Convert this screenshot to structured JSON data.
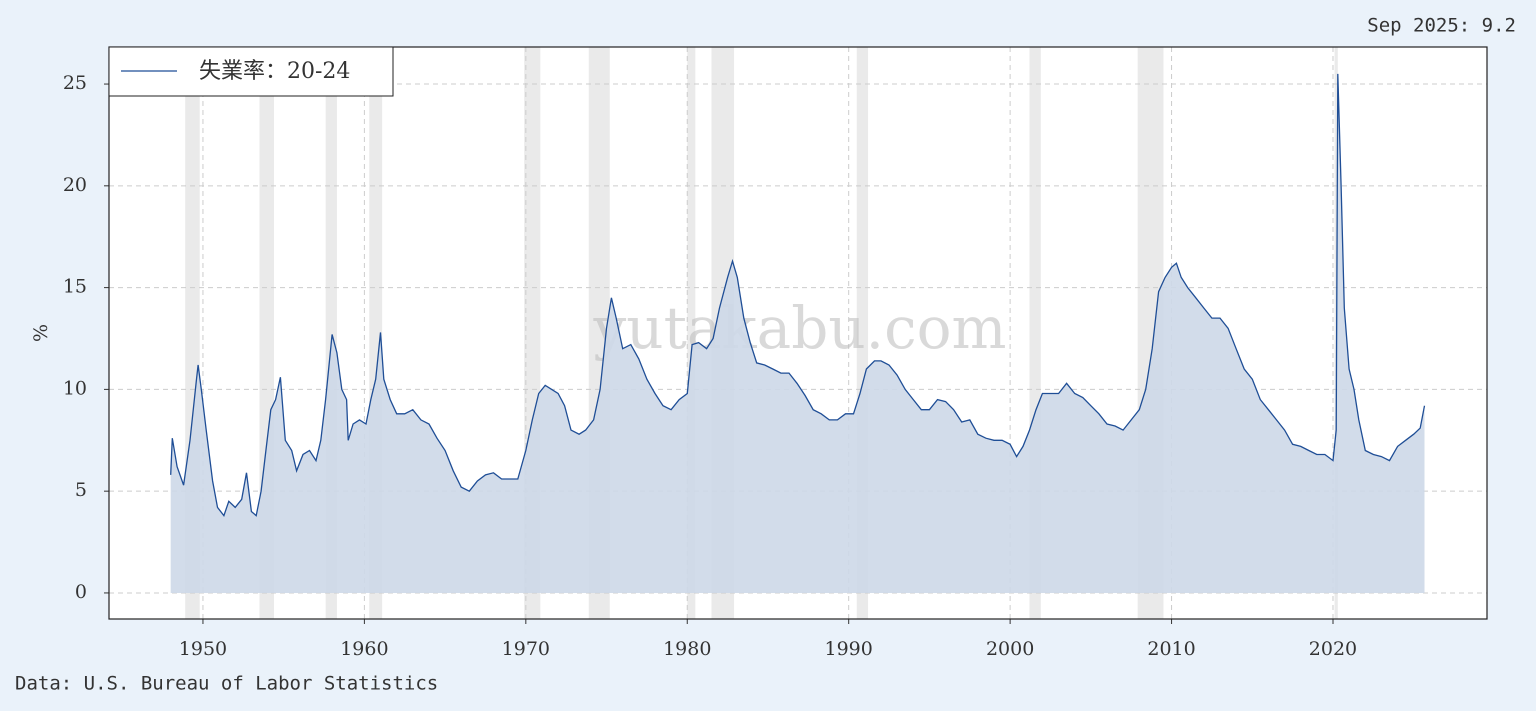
{
  "chart_data": {
    "type": "area",
    "annotation": "Sep 2025: 9.2",
    "source": "Data: U.S. Bureau of Labor Statistics",
    "ylabel": "%",
    "watermark": "yutakabu.com",
    "legend": "upper left",
    "grid": true,
    "series": [
      {
        "name": "失業率：20-24",
        "color": "#1f4e96",
        "fill": "#cdd8e8",
        "x": [
          1948.0,
          1948.1,
          1948.4,
          1948.8,
          1949.2,
          1949.6,
          1949.7,
          1949.9,
          1950.2,
          1950.6,
          1950.9,
          1951.3,
          1951.6,
          1952.0,
          1952.4,
          1952.7,
          1953.0,
          1953.3,
          1953.6,
          1953.9,
          1954.2,
          1954.5,
          1954.8,
          1955.1,
          1955.5,
          1955.8,
          1956.2,
          1956.6,
          1957.0,
          1957.3,
          1957.6,
          1958.0,
          1958.3,
          1958.6,
          1958.9,
          1959.0,
          1959.3,
          1959.7,
          1960.1,
          1960.4,
          1960.7,
          1961.0,
          1961.2,
          1961.6,
          1962.0,
          1962.5,
          1963.0,
          1963.5,
          1964.0,
          1964.5,
          1965.0,
          1965.5,
          1966.0,
          1966.5,
          1967.0,
          1967.5,
          1968.0,
          1968.5,
          1969.0,
          1969.5,
          1970.0,
          1970.4,
          1970.8,
          1971.2,
          1971.6,
          1972.0,
          1972.4,
          1972.8,
          1973.3,
          1973.7,
          1974.2,
          1974.6,
          1975.0,
          1975.3,
          1975.6,
          1976.0,
          1976.5,
          1977.0,
          1977.5,
          1978.0,
          1978.5,
          1979.0,
          1979.5,
          1980.0,
          1980.3,
          1980.7,
          1981.2,
          1981.6,
          1982.0,
          1982.5,
          1982.8,
          1983.1,
          1983.5,
          1983.9,
          1984.3,
          1984.8,
          1985.3,
          1985.8,
          1986.3,
          1986.8,
          1987.3,
          1987.8,
          1988.3,
          1988.8,
          1989.3,
          1989.8,
          1990.3,
          1990.7,
          1991.1,
          1991.6,
          1992.0,
          1992.5,
          1993.0,
          1993.5,
          1994.0,
          1994.5,
          1995.0,
          1995.5,
          1996.0,
          1996.5,
          1997.0,
          1997.5,
          1998.0,
          1998.5,
          1999.0,
          1999.5,
          2000.0,
          2000.4,
          2000.8,
          2001.2,
          2001.6,
          2002.0,
          2002.5,
          2003.0,
          2003.5,
          2004.0,
          2004.5,
          2005.0,
          2005.5,
          2006.0,
          2006.5,
          2007.0,
          2007.5,
          2008.0,
          2008.4,
          2008.8,
          2009.2,
          2009.6,
          2010.0,
          2010.3,
          2010.6,
          2011.0,
          2011.5,
          2012.0,
          2012.5,
          2013.0,
          2013.5,
          2014.0,
          2014.5,
          2015.0,
          2015.5,
          2016.0,
          2016.5,
          2017.0,
          2017.5,
          2018.0,
          2018.5,
          2019.0,
          2019.5,
          2020.0,
          2020.2,
          2020.3,
          2020.5,
          2020.7,
          2021.0,
          2021.3,
          2021.6,
          2022.0,
          2022.5,
          2023.0,
          2023.5,
          2024.0,
          2024.5,
          2025.0,
          2025.4,
          2025.67
        ],
        "values": [
          5.8,
          7.6,
          6.2,
          5.3,
          7.5,
          10.5,
          11.2,
          10.0,
          8.0,
          5.5,
          4.2,
          3.8,
          4.5,
          4.2,
          4.6,
          5.9,
          4.0,
          3.8,
          5.0,
          7.0,
          9.0,
          9.5,
          10.6,
          7.5,
          7.0,
          6.0,
          6.8,
          7.0,
          6.5,
          7.5,
          9.5,
          12.7,
          11.8,
          10.0,
          9.5,
          7.5,
          8.3,
          8.5,
          8.3,
          9.5,
          10.5,
          12.8,
          10.5,
          9.5,
          8.8,
          8.8,
          9.0,
          8.5,
          8.3,
          7.6,
          7.0,
          6.0,
          5.2,
          5.0,
          5.5,
          5.8,
          5.9,
          5.6,
          5.6,
          5.6,
          7.0,
          8.5,
          9.8,
          10.2,
          10.0,
          9.8,
          9.2,
          8.0,
          7.8,
          8.0,
          8.5,
          10.0,
          13.0,
          14.5,
          13.5,
          12.0,
          12.2,
          11.5,
          10.5,
          9.8,
          9.2,
          9.0,
          9.5,
          9.8,
          12.2,
          12.3,
          12.0,
          12.5,
          14.0,
          15.5,
          16.3,
          15.5,
          13.5,
          12.3,
          11.3,
          11.2,
          11.0,
          10.8,
          10.8,
          10.3,
          9.7,
          9.0,
          8.8,
          8.5,
          8.5,
          8.8,
          8.8,
          9.8,
          11.0,
          11.4,
          11.4,
          11.2,
          10.7,
          10.0,
          9.5,
          9.0,
          9.0,
          9.5,
          9.4,
          9.0,
          8.4,
          8.5,
          7.8,
          7.6,
          7.5,
          7.5,
          7.3,
          6.7,
          7.2,
          8.0,
          9.0,
          9.8,
          9.8,
          9.8,
          10.3,
          9.8,
          9.6,
          9.2,
          8.8,
          8.3,
          8.2,
          8.0,
          8.5,
          9.0,
          10.0,
          12.0,
          14.8,
          15.5,
          16.0,
          16.2,
          15.5,
          15.0,
          14.5,
          14.0,
          13.5,
          13.5,
          13.0,
          12.0,
          11.0,
          10.5,
          9.5,
          9.0,
          8.5,
          8.0,
          7.3,
          7.2,
          7.0,
          6.8,
          6.8,
          6.5,
          8.0,
          25.5,
          20.0,
          14.0,
          11.0,
          10.0,
          8.5,
          7.0,
          6.8,
          6.7,
          6.5,
          7.2,
          7.5,
          7.8,
          8.1,
          9.2
        ]
      }
    ],
    "recessions": [
      [
        1948.9,
        1949.8
      ],
      [
        1953.5,
        1954.4
      ],
      [
        1957.6,
        1958.3
      ],
      [
        1960.3,
        1961.1
      ],
      [
        1969.9,
        1970.9
      ],
      [
        1973.9,
        1975.2
      ],
      [
        1980.0,
        1980.5
      ],
      [
        1981.5,
        1982.9
      ],
      [
        1990.5,
        1991.2
      ],
      [
        2001.2,
        2001.9
      ],
      [
        2007.9,
        2009.5
      ],
      [
        2020.1,
        2020.3
      ]
    ],
    "xlim": [
      1944.18,
      2029.54
    ],
    "xticks": [
      1950,
      1960,
      1970,
      1980,
      1990,
      2000,
      2010,
      2020
    ],
    "ylim": [
      -1.28,
      26.82
    ],
    "yticks": [
      0,
      5,
      10,
      15,
      20,
      25
    ]
  }
}
